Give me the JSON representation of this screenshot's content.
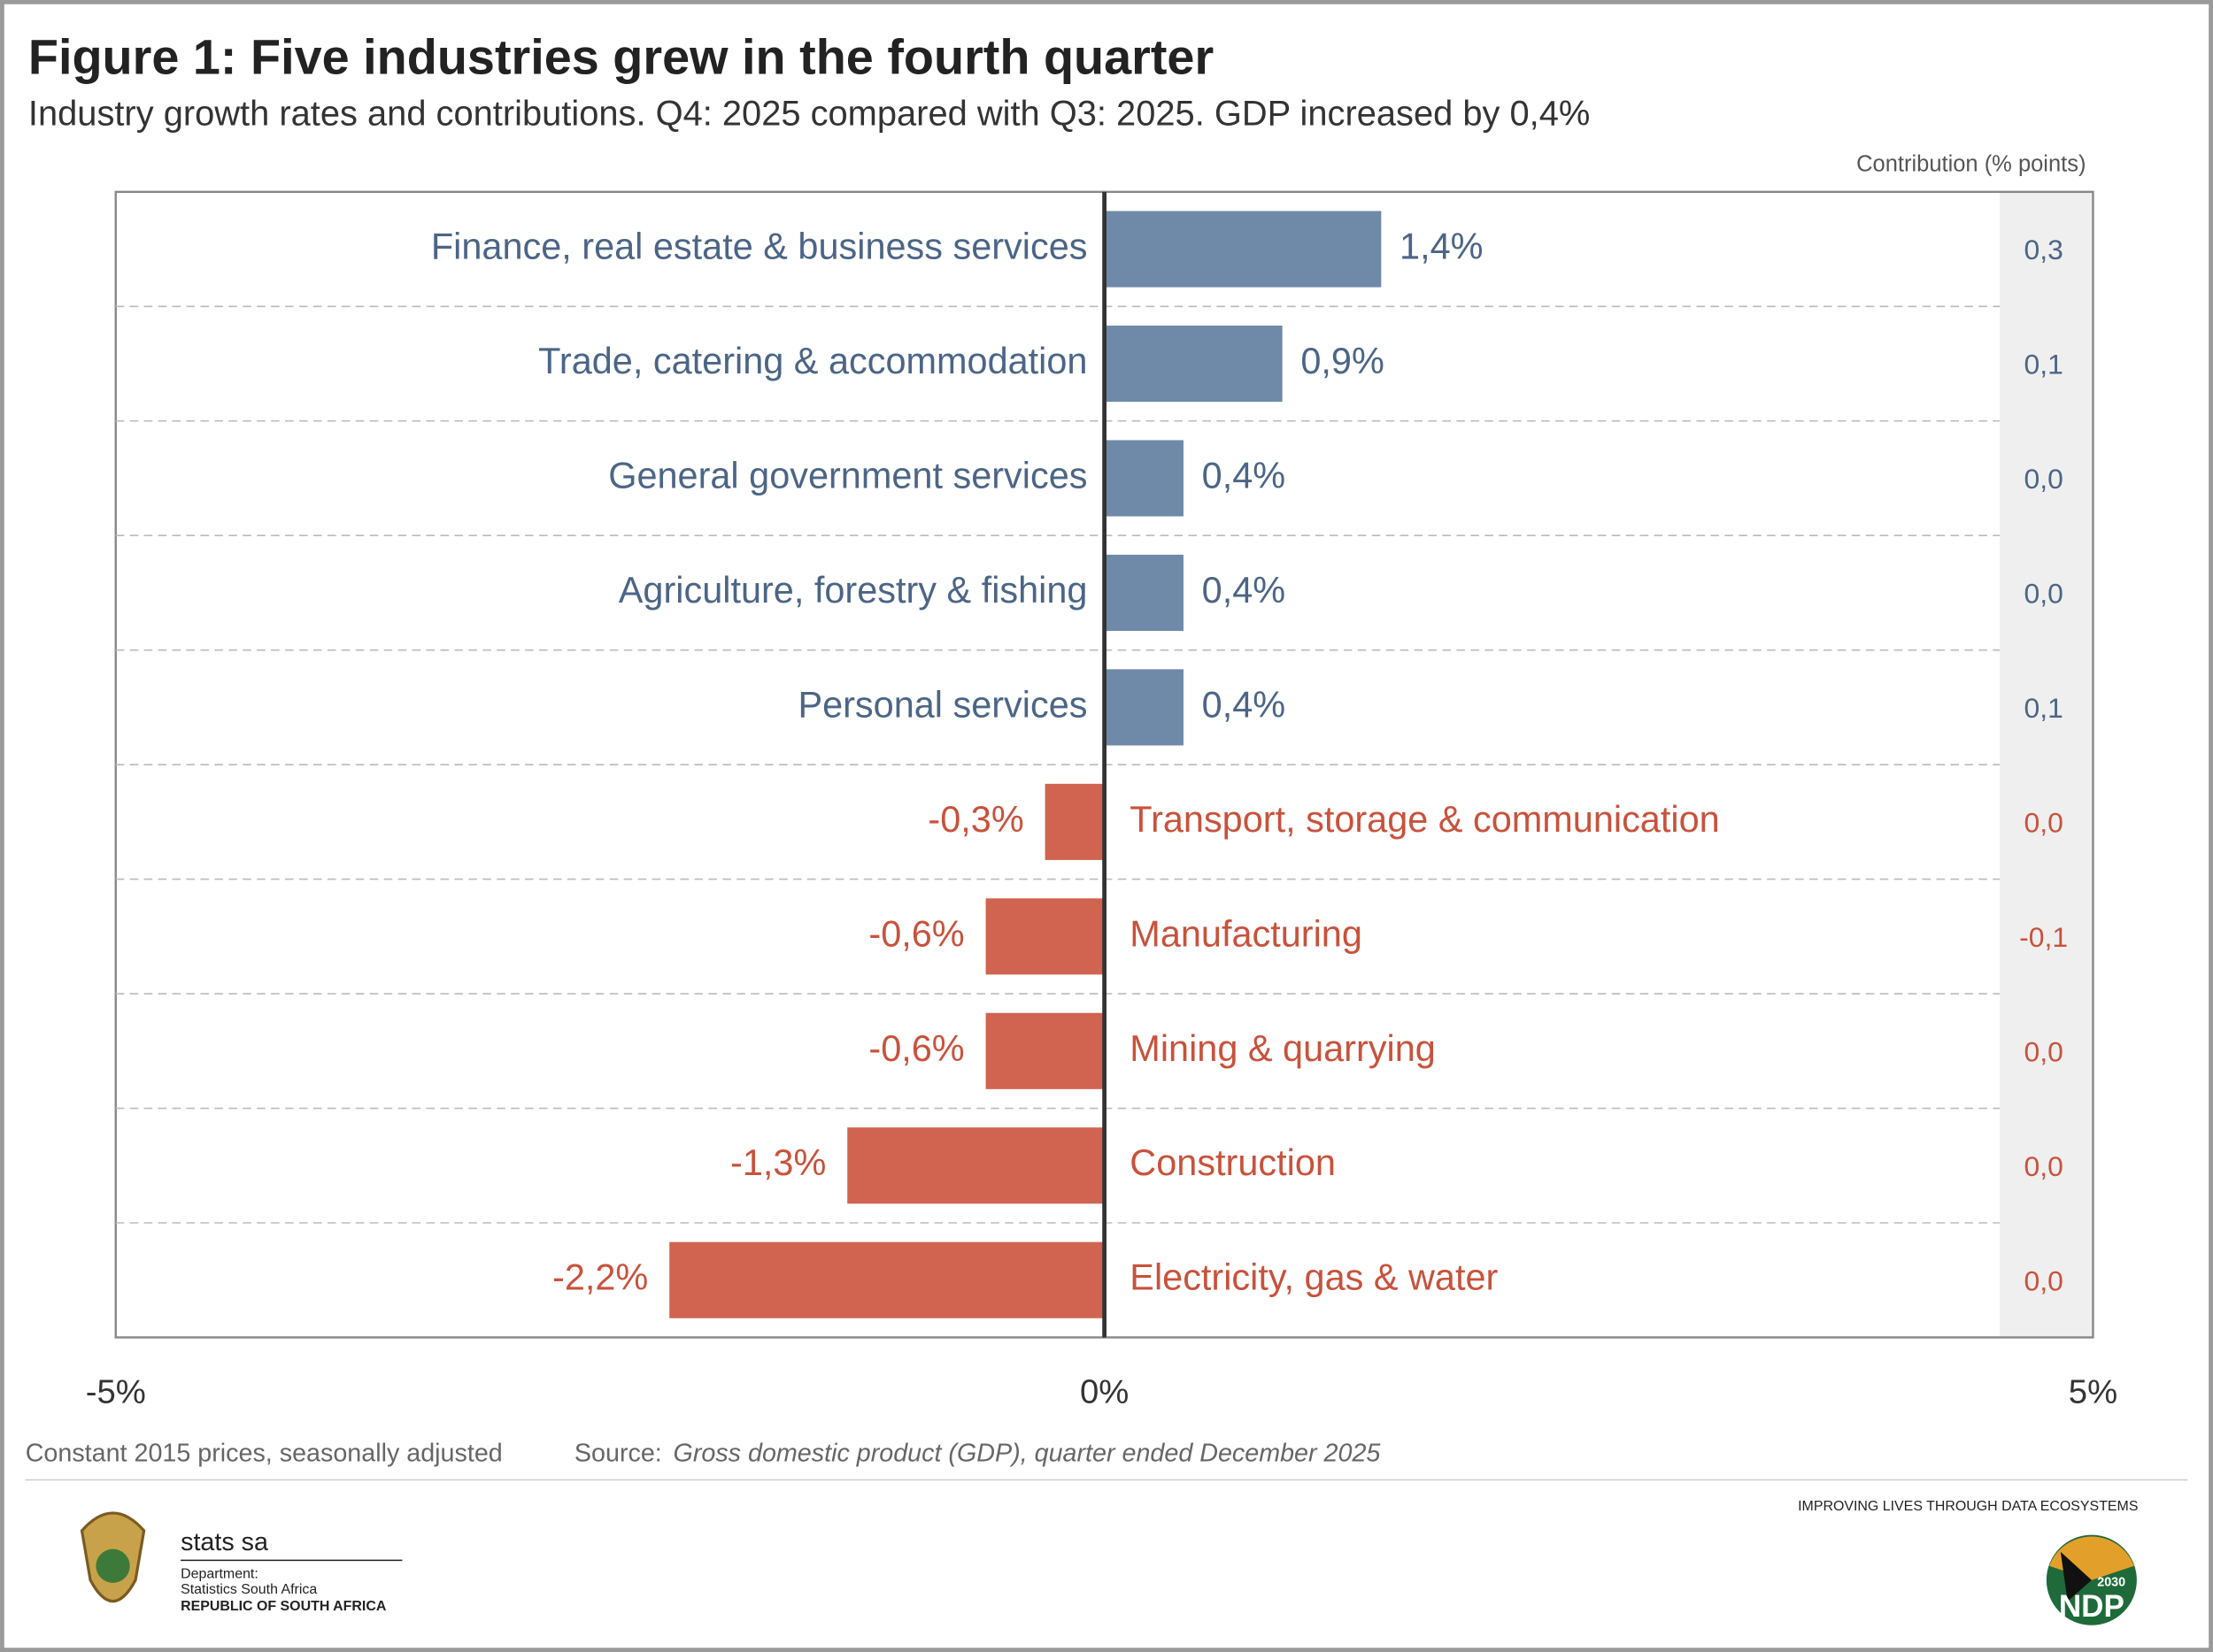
{
  "chart_data": {
    "type": "hbar",
    "title": "Figure 1: Five industries grew in the fourth quarter",
    "subtitle": "Industry growth rates and contributions. Q4: 2025 compared with Q3: 2025. GDP increased by 0,4%",
    "contribution_title": "Contribution (% points)",
    "categories": [
      "Finance, real estate & business services",
      "Trade, catering & accommodation",
      "General government services",
      "Agriculture, forestry & fishing",
      "Personal services",
      "Transport, storage & communication",
      "Manufacturing",
      "Mining & quarrying",
      "Construction",
      "Electricity, gas & water"
    ],
    "values": [
      1.4,
      0.9,
      0.4,
      0.4,
      0.4,
      -0.3,
      -0.6,
      -0.6,
      -1.3,
      -2.2
    ],
    "value_labels": [
      "1,4%",
      "0,9%",
      "0,4%",
      "0,4%",
      "0,4%",
      "-0,3%",
      "-0,6%",
      "-0,6%",
      "-1,3%",
      "-2,2%"
    ],
    "contributions": [
      0.3,
      0.1,
      0.0,
      0.0,
      0.1,
      0.0,
      -0.1,
      0.0,
      0.0,
      0.0
    ],
    "contribution_labels": [
      "0,3",
      "0,1",
      "0,0",
      "0,0",
      "0,1",
      "0,0",
      "-0,1",
      "0,0",
      "0,0",
      "0,0"
    ],
    "positive_color": "#6f89a8",
    "negative_color": "#d06450",
    "positive_text_color": "#4b6586",
    "negative_text_color": "#c8523c",
    "xlim": [
      -5,
      5
    ],
    "xticks": [
      {
        "value": -5,
        "label": "-5%"
      },
      {
        "value": 0,
        "label": "0%"
      },
      {
        "value": 5,
        "label": "5%"
      }
    ],
    "note": "Constant 2015 prices, seasonally adjusted",
    "source_label": "Source:",
    "source": "Gross domestic product (GDP), quarter ended December 2025"
  },
  "branding": {
    "tagline": "IMPROVING LIVES THROUGH DATA ECOSYSTEMS",
    "logo_name": "stats sa",
    "department": "Department:",
    "department_name": "Statistics South Africa",
    "country": "REPUBLIC OF SOUTH AFRICA",
    "ndp": "NDP",
    "ndp_year": "2030"
  }
}
